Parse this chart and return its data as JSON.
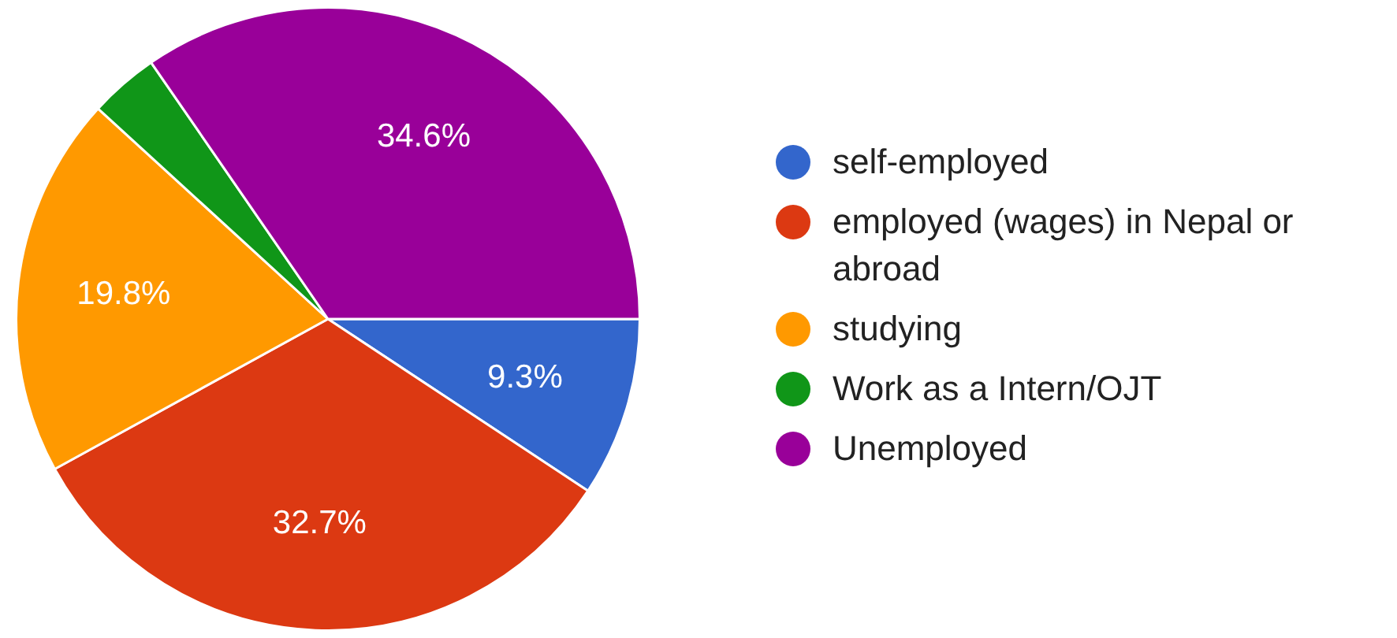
{
  "chart_data": {
    "type": "pie",
    "categories": [
      "self-employed",
      "employed (wages) in Nepal or abroad",
      "studying",
      "Work as a Intern/OJT",
      "Unemployed"
    ],
    "values": [
      9.3,
      32.7,
      19.8,
      3.6,
      34.6
    ],
    "colors": [
      "#3366cc",
      "#dc3912",
      "#ff9900",
      "#109618",
      "#990099"
    ],
    "value_labels": [
      "9.3%",
      "32.7%",
      "19.8%",
      null,
      "34.6%"
    ],
    "legend": "right"
  }
}
